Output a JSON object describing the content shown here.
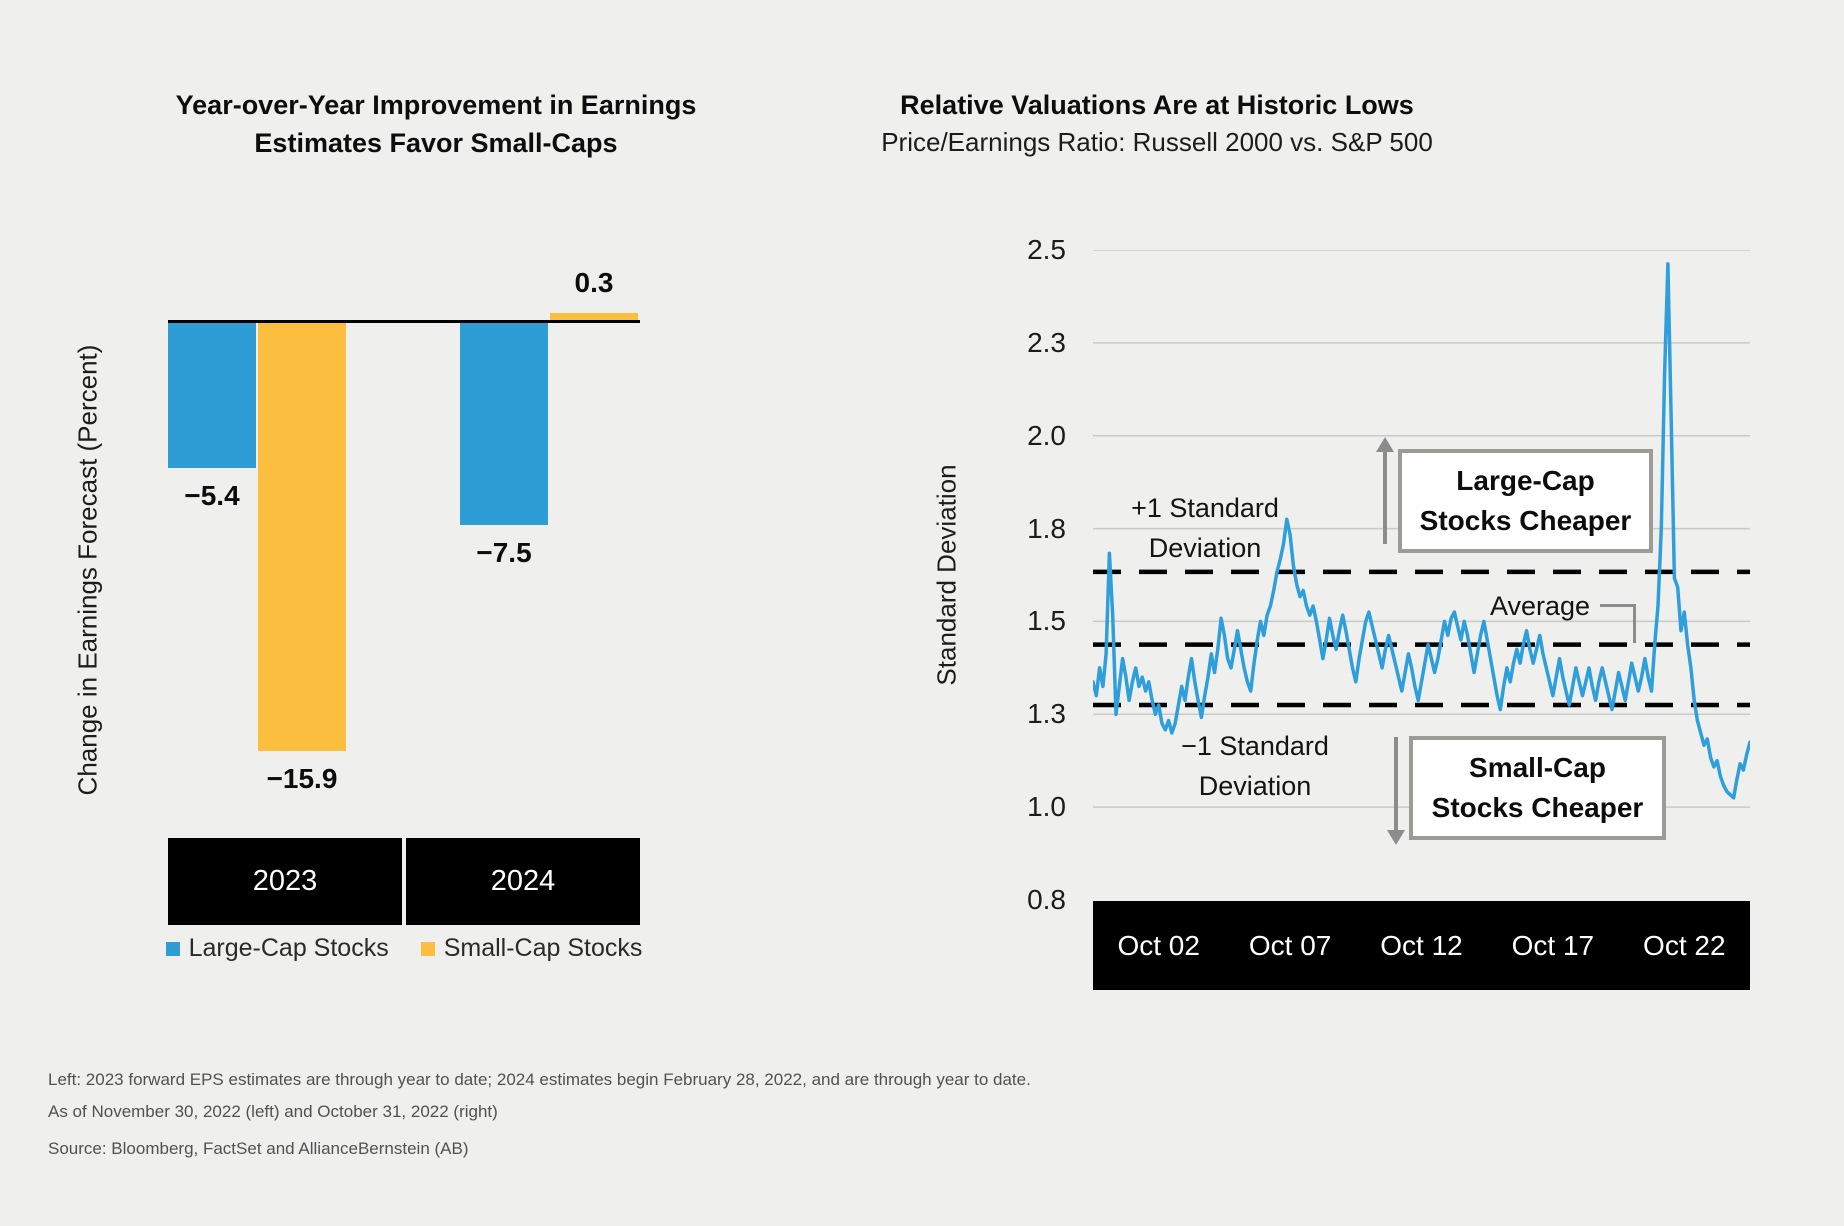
{
  "colors": {
    "background": "#efefed",
    "large_cap_blue": "#2e9cd5",
    "small_cap_yellow": "#fbbe3e",
    "line_blue": "#2e9fda",
    "gridline": "#c9c9c7",
    "axis_black": "#000000",
    "box_border_gray": "#9b9b98",
    "arrow_gray": "#8c8c8c",
    "footnote_gray": "#515151"
  },
  "chart_data": [
    {
      "type": "bar",
      "title": "Year-over-Year Improvement in Earnings Estimates Favor Small-Caps",
      "title_lines": [
        "Year-over-Year Improvement in Earnings",
        "Estimates Favor Small-Caps"
      ],
      "xlabel": "",
      "ylabel": "Change in Earnings Forecast (Percent)",
      "categories": [
        "2023",
        "2024"
      ],
      "series": [
        {
          "name": "Large-Cap Stocks",
          "color": "#2e9cd5",
          "values": [
            -5.4,
            -7.5
          ],
          "labels": [
            "−5.4",
            "−7.5"
          ]
        },
        {
          "name": "Small-Cap Stocks",
          "color": "#fbbe3e",
          "values": [
            -15.9,
            0.3
          ],
          "labels": [
            "−15.9",
            "0.3"
          ]
        }
      ],
      "baseline": 0,
      "grid": false,
      "legend_position": "bottom"
    },
    {
      "type": "line",
      "title": "Relative Valuations Are at Historic Lows",
      "subtitle": "Price/Earnings Ratio: Russell 2000 vs. S&P 500",
      "xlabel": "",
      "ylabel": "Standard Deviation",
      "x_ticks": [
        "Oct 02",
        "Oct 07",
        "Oct 12",
        "Oct 17",
        "Oct 22"
      ],
      "y_ticks": [
        2.5,
        2.3,
        2.0,
        1.8,
        1.5,
        1.3,
        1.0,
        0.8
      ],
      "grid": true,
      "reference_lines": {
        "plus1_std": 1.66,
        "average": 1.45,
        "minus1_std": 1.32
      },
      "annotations": {
        "plus1_line1": "+1 Standard",
        "plus1_line2": "Deviation",
        "average": "Average",
        "minus1_line1": "−1 Standard",
        "minus1_line2": "Deviation",
        "large_cap_line1": "Large-Cap",
        "large_cap_line2": "Stocks Cheaper",
        "small_cap_line1": "Small-Cap",
        "small_cap_line2": "Stocks Cheaper"
      },
      "series": [
        {
          "name": "Russell 2000 vs. S&P 500 P/E ratio (standard deviations)",
          "color": "#2e9fda",
          "values": [
            1.37,
            1.34,
            1.4,
            1.36,
            1.43,
            1.72,
            1.52,
            1.3,
            1.36,
            1.42,
            1.38,
            1.33,
            1.37,
            1.4,
            1.36,
            1.38,
            1.35,
            1.37,
            1.33,
            1.3,
            1.32,
            1.27,
            1.25,
            1.28,
            1.24,
            1.27,
            1.32,
            1.36,
            1.33,
            1.38,
            1.42,
            1.37,
            1.33,
            1.29,
            1.34,
            1.38,
            1.43,
            1.39,
            1.44,
            1.51,
            1.47,
            1.42,
            1.4,
            1.44,
            1.48,
            1.44,
            1.4,
            1.37,
            1.35,
            1.41,
            1.46,
            1.5,
            1.47,
            1.52,
            1.55,
            1.6,
            1.66,
            1.7,
            1.75,
            1.82,
            1.78,
            1.68,
            1.62,
            1.58,
            1.6,
            1.55,
            1.52,
            1.55,
            1.5,
            1.46,
            1.42,
            1.46,
            1.51,
            1.47,
            1.44,
            1.48,
            1.52,
            1.48,
            1.44,
            1.4,
            1.37,
            1.42,
            1.46,
            1.5,
            1.53,
            1.49,
            1.46,
            1.43,
            1.4,
            1.44,
            1.47,
            1.44,
            1.41,
            1.38,
            1.35,
            1.39,
            1.43,
            1.4,
            1.36,
            1.33,
            1.37,
            1.41,
            1.45,
            1.42,
            1.39,
            1.42,
            1.46,
            1.5,
            1.47,
            1.51,
            1.53,
            1.49,
            1.46,
            1.5,
            1.47,
            1.43,
            1.39,
            1.43,
            1.47,
            1.5,
            1.46,
            1.42,
            1.38,
            1.34,
            1.31,
            1.36,
            1.4,
            1.37,
            1.41,
            1.44,
            1.41,
            1.45,
            1.48,
            1.44,
            1.41,
            1.44,
            1.47,
            1.43,
            1.4,
            1.37,
            1.34,
            1.38,
            1.42,
            1.38,
            1.35,
            1.32,
            1.36,
            1.4,
            1.37,
            1.34,
            1.37,
            1.4,
            1.36,
            1.33,
            1.37,
            1.4,
            1.37,
            1.34,
            1.31,
            1.35,
            1.39,
            1.36,
            1.33,
            1.37,
            1.41,
            1.38,
            1.35,
            1.38,
            1.42,
            1.38,
            1.35,
            1.45,
            1.55,
            1.8,
            2.2,
            2.47,
            2.05,
            1.64,
            1.61,
            1.48,
            1.53,
            1.45,
            1.4,
            1.33,
            1.28,
            1.24,
            1.2,
            1.22,
            1.16,
            1.13,
            1.15,
            1.1,
            1.07,
            1.05,
            1.04,
            1.03,
            1.09,
            1.14,
            1.12,
            1.17,
            1.21
          ]
        }
      ]
    }
  ],
  "footnotes": [
    "Left: 2023 forward EPS estimates are through year to date; 2024 estimates begin February 28, 2022, and are through year to date.",
    "As of November 30, 2022 (left) and October 31, 2022 (right)",
    "Source: Bloomberg, FactSet and AllianceBernstein (AB)"
  ]
}
